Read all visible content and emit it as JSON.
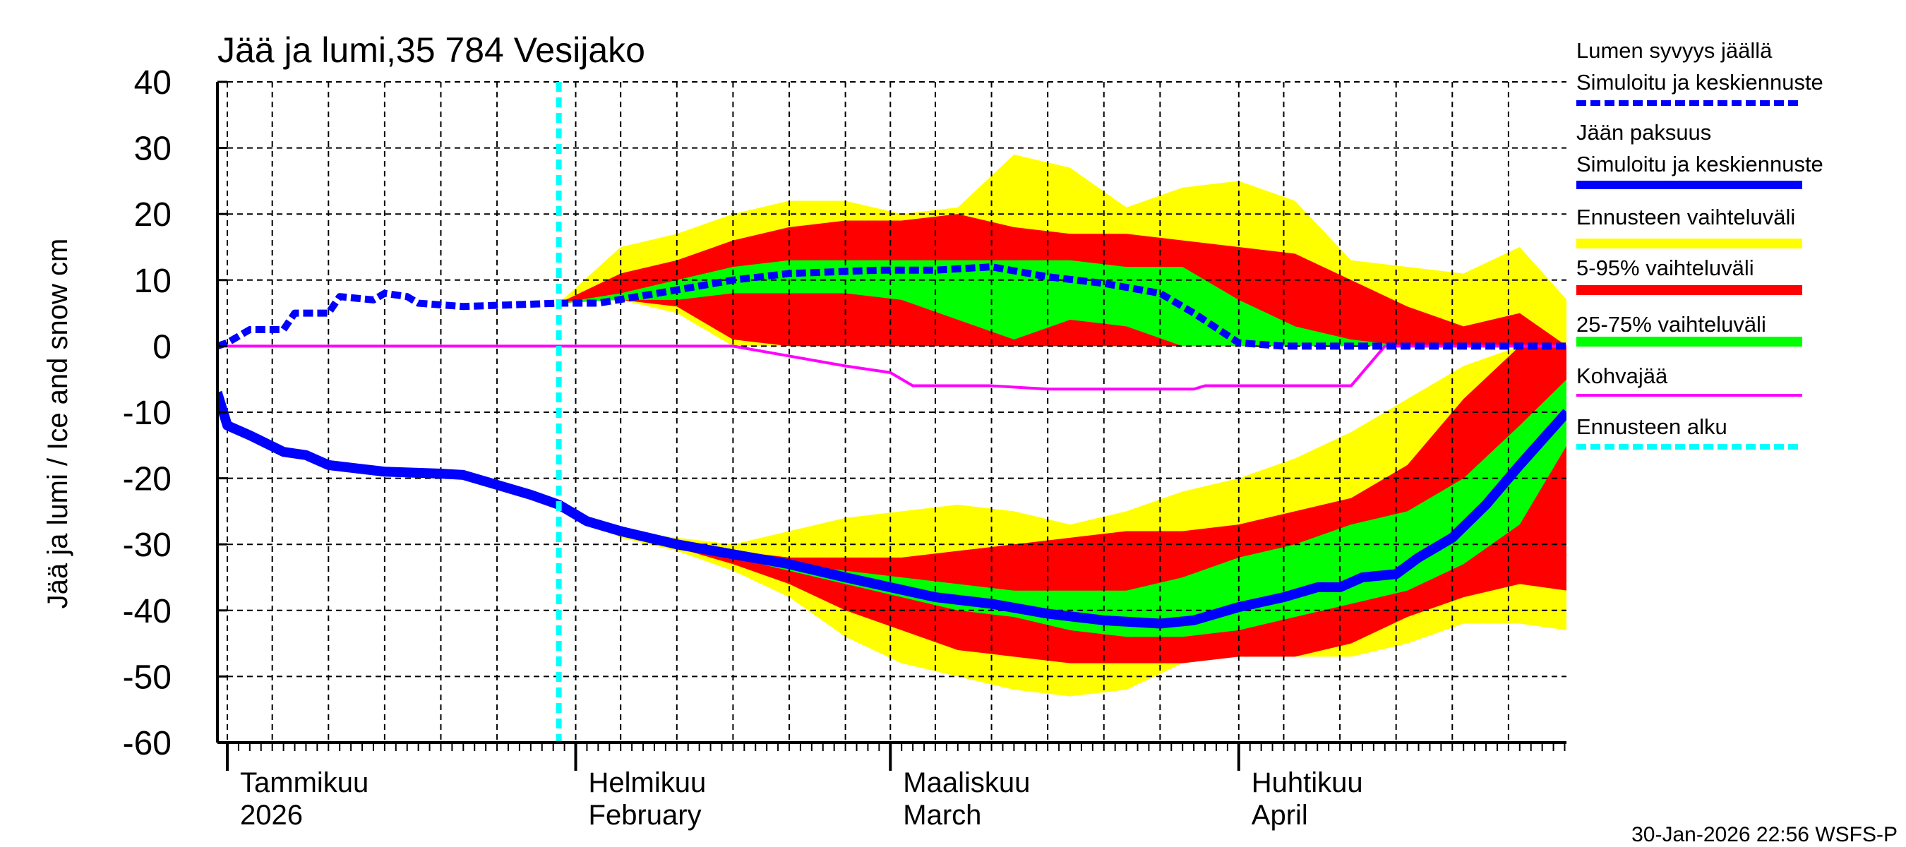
{
  "chart_data": {
    "type": "area",
    "title": "Jää ja lumi,35 784 Vesijako",
    "ylabel": "Jää ja lumi / Ice and snow    cm",
    "xlabel": "",
    "ylim": [
      -60,
      40
    ],
    "yticks": [
      40,
      30,
      20,
      10,
      0,
      -10,
      -20,
      -30,
      -40,
      -50,
      -60
    ],
    "x_unit": "day of 2026 from 1 January (0 = 1 Jan)",
    "xlim_days": [
      -0.9,
      119.2
    ],
    "forecast_start_day": 29.5,
    "grid": true,
    "legend_position": "right",
    "month_labels": [
      {
        "day": 0,
        "fi": "Tammikuu",
        "en": "2026"
      },
      {
        "day": 31,
        "fi": "Helmikuu",
        "en": "February"
      },
      {
        "day": 59,
        "fi": "Maaliskuu",
        "en": "March"
      },
      {
        "day": 90,
        "fi": "Huhtikuu",
        "en": "April"
      }
    ],
    "legend": [
      {
        "line1": "Lumen syvyys jäällä",
        "line2": "Simuloitu ja keskiennuste",
        "color": "#0000ff",
        "style": "dotted"
      },
      {
        "line1": "Jään paksuus",
        "line2": "Simuloitu ja keskiennuste",
        "color": "#0000ff",
        "style": "solid"
      },
      {
        "line1": "Ennusteen vaihteluväli",
        "color": "#ffff00",
        "style": "band"
      },
      {
        "line1": "5-95% vaihteluväli",
        "color": "#ff0000",
        "style": "band"
      },
      {
        "line1": "25-75% vaihteluväli",
        "color": "#00ff00",
        "style": "band"
      },
      {
        "line1": "Kohvajää",
        "color": "#ff00ff",
        "style": "thin"
      },
      {
        "line1": "Ennusteen alku",
        "color": "#00ffff",
        "style": "dashed"
      }
    ],
    "series": {
      "snow_depth": {
        "days": [
          -0.9,
          0,
          2,
          5,
          6,
          9,
          10,
          13,
          14,
          16,
          17,
          21,
          29.5,
          33,
          40,
          45,
          50,
          58,
          63,
          68,
          73,
          78,
          83,
          86,
          90,
          94,
          119.2
        ],
        "values": [
          0,
          0.5,
          2.5,
          2.5,
          5,
          5,
          7.5,
          7,
          8,
          7.5,
          6.5,
          6,
          6.5,
          6.5,
          8.5,
          10,
          11,
          11.5,
          11.5,
          12,
          10.5,
          9.5,
          8,
          5,
          0.5,
          0,
          0
        ]
      },
      "ice_thickness": {
        "days": [
          -0.9,
          0,
          2,
          5,
          7,
          9,
          14,
          19,
          21,
          24,
          27,
          29.5,
          32,
          35,
          40,
          45,
          50,
          55,
          59,
          63,
          68,
          73,
          78,
          83,
          86,
          90,
          94,
          97,
          99,
          101,
          104,
          106,
          109,
          112,
          115,
          119.2
        ],
        "values": [
          -7,
          -12,
          -13.5,
          -16,
          -16.5,
          -18,
          -19,
          -19.3,
          -19.5,
          -21,
          -22.5,
          -24,
          -26.5,
          -28,
          -30,
          -31.5,
          -33,
          -35,
          -36.5,
          -38,
          -39,
          -40.5,
          -41.5,
          -42,
          -41.5,
          -39.5,
          -38,
          -36.5,
          -36.5,
          -35,
          -34.5,
          -32,
          -29,
          -24,
          -18,
          -10
        ]
      },
      "kohvajaa": {
        "days": [
          -0.9,
          45,
          50,
          55,
          59,
          61,
          68,
          73,
          86,
          87,
          100,
          103,
          119.2
        ],
        "values": [
          0,
          0,
          -1.5,
          -3,
          -4,
          -6,
          -6,
          -6.5,
          -6.5,
          -6,
          -6,
          0,
          0
        ]
      }
    },
    "bands_days": [
      29.5,
      35,
      40,
      45,
      50,
      55,
      60,
      65,
      70,
      75,
      80,
      85,
      90,
      95,
      100,
      105,
      110,
      115,
      119.2
    ],
    "snow_bands": {
      "ennuste_range": {
        "high": [
          6.5,
          15,
          17,
          20,
          22,
          22,
          20,
          21,
          29,
          27,
          21,
          24,
          25,
          22,
          13,
          12,
          11,
          15,
          7
        ],
        "low": [
          6.5,
          7,
          5,
          0,
          0,
          0,
          0,
          0,
          0,
          0,
          0,
          0,
          0,
          0,
          0,
          0,
          0,
          0,
          0
        ]
      },
      "p5_95": {
        "high": [
          6.5,
          11,
          13,
          16,
          18,
          19,
          19,
          20,
          18,
          17,
          17,
          16,
          15,
          14,
          10,
          6,
          3,
          5,
          0
        ],
        "low": [
          6.5,
          7,
          6,
          1,
          0,
          0,
          0,
          0,
          0,
          0,
          0,
          0,
          0,
          0,
          0,
          0,
          0,
          0,
          0
        ]
      },
      "p25_75": {
        "high": [
          6.5,
          8,
          10,
          12,
          13,
          13,
          13,
          13,
          13,
          13,
          12,
          12,
          7,
          3,
          1,
          0,
          0,
          0,
          0
        ],
        "low": [
          6.5,
          7,
          7,
          8,
          8,
          8,
          7,
          4,
          1,
          4,
          3,
          0,
          0,
          0,
          0,
          0,
          0,
          0,
          0
        ]
      }
    },
    "ice_bands": {
      "ennuste_range": {
        "high": [
          -24,
          -28,
          -29,
          -30,
          -28,
          -26,
          -25,
          -24,
          -25,
          -27,
          -25,
          -22,
          -20,
          -17,
          -13,
          -8,
          -3,
          0,
          0
        ],
        "low": [
          -24,
          -29,
          -31,
          -34,
          -38,
          -44,
          -48,
          -50,
          -52,
          -53,
          -52,
          -48,
          -47,
          -47,
          -47,
          -45,
          -42,
          -42,
          -43
        ]
      },
      "p5_95": {
        "high": [
          -24,
          -28,
          -29.5,
          -31,
          -32,
          -32,
          -32,
          -31,
          -30,
          -29,
          -28,
          -28,
          -27,
          -25,
          -23,
          -18,
          -8,
          0,
          0
        ],
        "low": [
          -24,
          -28.5,
          -30.5,
          -33,
          -36,
          -40,
          -43,
          -46,
          -47,
          -48,
          -48,
          -48,
          -47,
          -47,
          -45,
          -41,
          -38,
          -36,
          -37
        ]
      },
      "p25_75": {
        "high": [
          -24,
          -28,
          -30,
          -31,
          -33,
          -34,
          -35,
          -36,
          -37,
          -37,
          -37,
          -35,
          -32,
          -30,
          -27,
          -25,
          -20,
          -12,
          -5
        ],
        "low": [
          -24,
          -28.5,
          -30.5,
          -32,
          -34,
          -36,
          -38,
          -40,
          -41,
          -43,
          -44,
          -44,
          -43,
          -41,
          -39,
          -37,
          -33,
          -27,
          -15
        ]
      }
    },
    "colors": {
      "yellow": "#ffff00",
      "red": "#ff0000",
      "green": "#00ff00",
      "blue": "#0000ff",
      "magenta": "#ff00ff",
      "cyan": "#00ffff"
    }
  },
  "footer": "30-Jan-2026 22:56 WSFS-P"
}
